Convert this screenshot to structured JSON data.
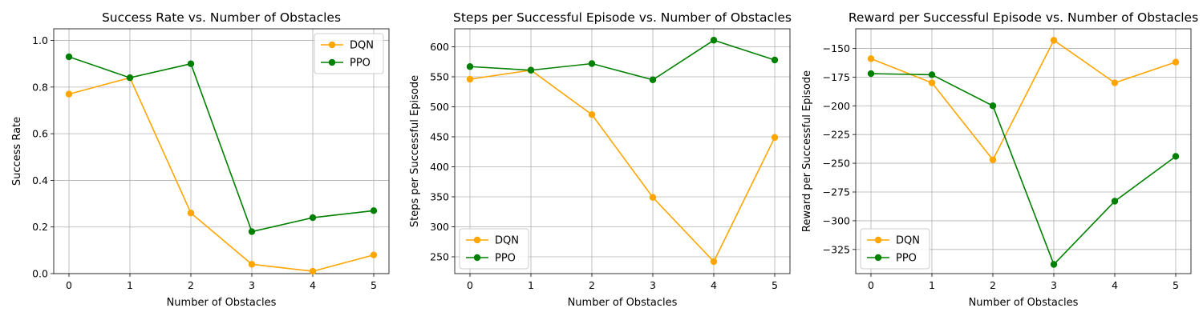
{
  "chart_data": [
    {
      "type": "line",
      "title": "Success Rate vs. Number of Obstacles",
      "xlabel": "Number of Obstacles",
      "ylabel": "Success Rate",
      "x": [
        0,
        1,
        2,
        3,
        4,
        5
      ],
      "xticks": [
        "0",
        "1",
        "2",
        "3",
        "4",
        "5"
      ],
      "yticks": [
        0.0,
        0.2,
        0.4,
        0.6,
        0.8,
        1.0
      ],
      "ytick_labels": [
        "0.0",
        "0.2",
        "0.4",
        "0.6",
        "0.8",
        "1.0"
      ],
      "xlim": [
        -0.25,
        5.25
      ],
      "ylim": [
        0.0,
        1.05
      ],
      "grid": true,
      "legend": "upper right",
      "series": [
        {
          "name": "DQN",
          "color": "#ffa500",
          "values": [
            0.77,
            0.84,
            0.26,
            0.04,
            0.01,
            0.08
          ]
        },
        {
          "name": "PPO",
          "color": "#008000",
          "values": [
            0.93,
            0.84,
            0.9,
            0.18,
            0.24,
            0.27
          ]
        }
      ]
    },
    {
      "type": "line",
      "title": "Steps per Successful Episode vs. Number of Obstacles",
      "xlabel": "Number of Obstacles",
      "ylabel": "Steps per Successful Episode",
      "x": [
        0,
        1,
        2,
        3,
        4,
        5
      ],
      "xticks": [
        "0",
        "1",
        "2",
        "3",
        "4",
        "5"
      ],
      "yticks": [
        250,
        300,
        350,
        400,
        450,
        500,
        550,
        600
      ],
      "ytick_labels": [
        "250",
        "300",
        "350",
        "400",
        "450",
        "500",
        "550",
        "600"
      ],
      "xlim": [
        -0.25,
        5.25
      ],
      "ylim": [
        222,
        630
      ],
      "grid": true,
      "legend": "lower left",
      "series": [
        {
          "name": "DQN",
          "color": "#ffa500",
          "values": [
            546,
            561,
            487,
            349,
            242,
            449
          ]
        },
        {
          "name": "PPO",
          "color": "#008000",
          "values": [
            567,
            561,
            572,
            545,
            611,
            578
          ]
        }
      ]
    },
    {
      "type": "line",
      "title": "Reward per Successful Episode vs. Number of Obstacles",
      "xlabel": "Number of Obstacles",
      "ylabel": "Reward per Successful Episode",
      "x": [
        0,
        1,
        2,
        3,
        4,
        5
      ],
      "xticks": [
        "0",
        "1",
        "2",
        "3",
        "4",
        "5"
      ],
      "yticks": [
        -325,
        -300,
        -275,
        -250,
        -225,
        -200,
        -175,
        -150
      ],
      "ytick_labels": [
        "−325",
        "−300",
        "−275",
        "−250",
        "−225",
        "−200",
        "−175",
        "−150"
      ],
      "xlim": [
        -0.25,
        5.25
      ],
      "ylim": [
        -346,
        -133
      ],
      "grid": true,
      "legend": "lower left",
      "series": [
        {
          "name": "DQN",
          "color": "#ffa500",
          "values": [
            -159,
            -180,
            -247,
            -143,
            -180,
            -162
          ]
        },
        {
          "name": "PPO",
          "color": "#008000",
          "values": [
            -172,
            -173,
            -200,
            -338,
            -283,
            -244
          ]
        }
      ]
    }
  ]
}
